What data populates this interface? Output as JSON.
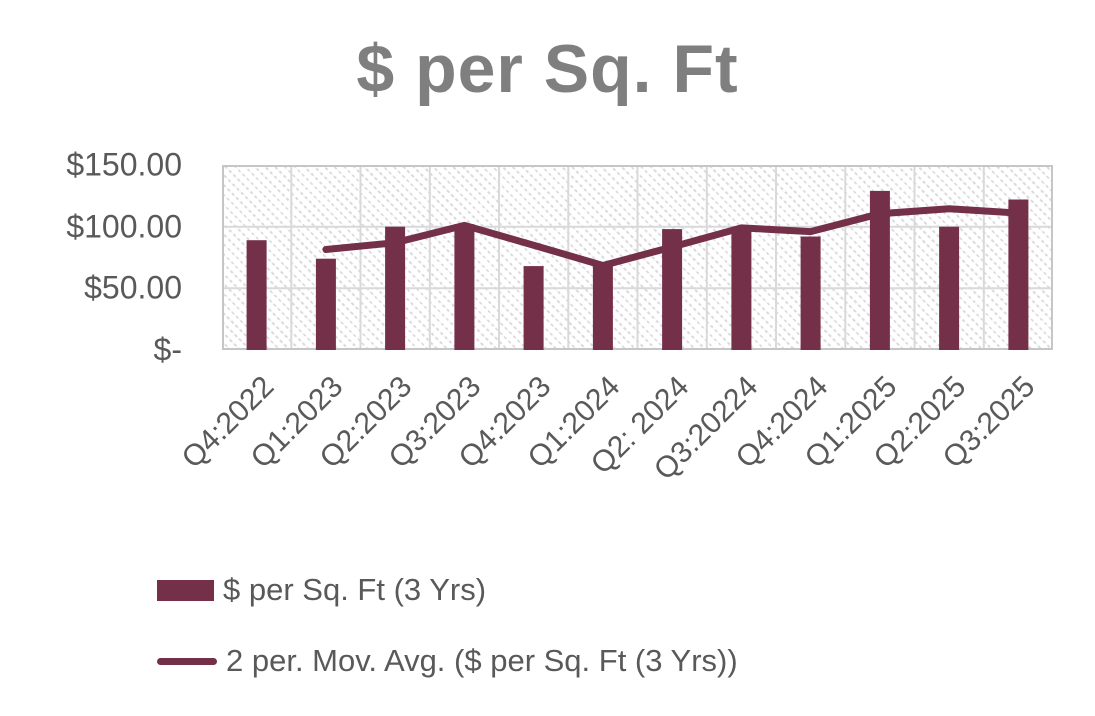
{
  "chart_data": {
    "type": "bar",
    "title": "$ per Sq. Ft",
    "categories": [
      "Q4:2022",
      "Q1:2023",
      "Q2:2023",
      "Q3:2023",
      "Q4:2023",
      "Q1:2024",
      "Q2: 2024",
      "Q3:20224",
      "Q4:2024",
      "Q1:2025",
      "Q2:2025",
      "Q3:2025"
    ],
    "series": [
      {
        "name": "$ per Sq. Ft (3 Yrs)",
        "type": "bar",
        "values": [
          89,
          74,
          100,
          102,
          68,
          69,
          98,
          100,
          92,
          129,
          100,
          122
        ]
      },
      {
        "name": "2 per. Mov. Avg. ($ per Sq. Ft (3 Yrs))",
        "type": "line",
        "values": [
          null,
          81.5,
          87,
          101,
          85,
          68.5,
          83.5,
          99,
          96,
          110.5,
          114.5,
          111
        ]
      }
    ],
    "xlabel": "",
    "ylabel": "",
    "ylim": [
      0,
      150
    ],
    "yticks": [
      {
        "value": 150,
        "label": "$150.00"
      },
      {
        "value": 100,
        "label": "$100.00"
      },
      {
        "value": 50,
        "label": "$50.00"
      },
      {
        "value": 0,
        "label": "$-"
      }
    ],
    "grid": true,
    "legend_position": "bottom-left",
    "plot_area_pattern": "light-diagonal-hatch"
  },
  "colors": {
    "bar": "#743048",
    "line": "#743048",
    "title_text": "#7F7F7F",
    "axis_text": "#595959",
    "gridline": "#D9D9D9",
    "plot_border": "#C6C6C6",
    "hatch": "#DCDCDC",
    "background": "#FFFFFF"
  }
}
